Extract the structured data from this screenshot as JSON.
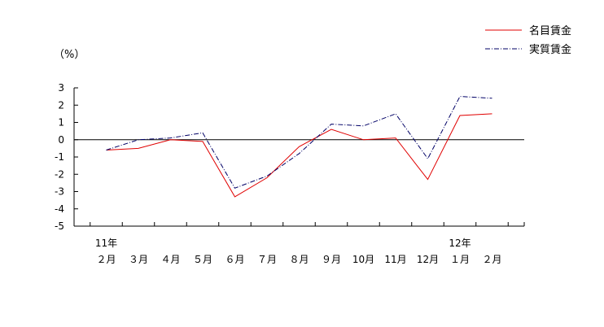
{
  "chart_data": {
    "type": "line",
    "unit_label": "（%）",
    "categories": [
      "２月",
      "３月",
      "４月",
      "５月",
      "６月",
      "７月",
      "８月",
      "９月",
      "10月",
      "11月",
      "12月",
      "１月",
      "２月"
    ],
    "year_labels": [
      {
        "category_index": 0,
        "label": "11年"
      },
      {
        "category_index": 11,
        "label": "12年"
      }
    ],
    "ylim": [
      -5,
      3
    ],
    "yticks": [
      "3",
      "2",
      "1",
      "0",
      "-1",
      "-2",
      "-3",
      "-4",
      "-5"
    ],
    "legend_position": "top-right",
    "series": [
      {
        "name": "名目賃金",
        "color": "#e00000",
        "style": "solid",
        "values": [
          -0.6,
          -0.5,
          0.0,
          -0.1,
          -3.3,
          -2.2,
          -0.4,
          0.6,
          0.0,
          0.1,
          -2.3,
          1.4,
          1.5
        ]
      },
      {
        "name": "実質賃金",
        "color": "#000066",
        "style": "dash-dot",
        "values": [
          -0.6,
          0.0,
          0.1,
          0.4,
          -2.8,
          -2.1,
          -0.8,
          0.9,
          0.8,
          1.5,
          -1.1,
          2.5,
          2.4
        ]
      }
    ]
  }
}
